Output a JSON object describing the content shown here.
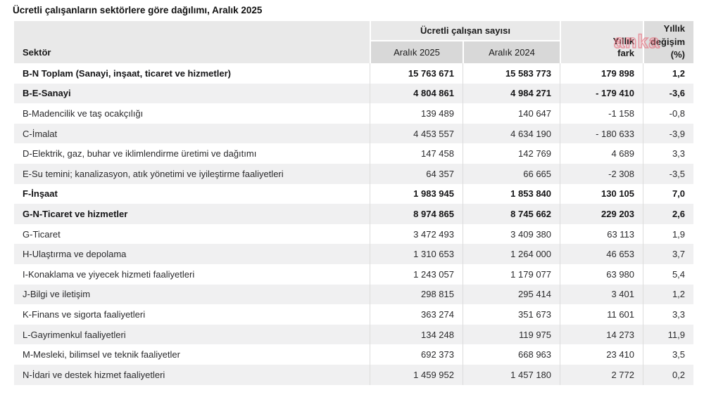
{
  "title": "Ücretli çalışanların sektörlere göre dağılımı, Aralık 2025",
  "watermark": "anka",
  "header": {
    "sector": "Sektör",
    "group": "Ücretli çalışan sayısı",
    "dec2025": "Aralık 2025",
    "dec2024": "Aralık 2024",
    "diff": "Yıllık\nfark",
    "pct": "Yıllık\ndeğişim\n(%)"
  },
  "colors": {
    "header_bg": "#e9e9e9",
    "subheader_bg": "#d8d8d8",
    "pct_header_bg": "#dcdcdc",
    "row_alt_bg": "#f0f0f1",
    "column_border": "#dcdcdc",
    "watermark_pink": "#e86e7e",
    "text": "#1d1d1f"
  },
  "chart_data": {
    "type": "table",
    "title": "Ücretli çalışanların sektörlere göre dağılımı, Aralık 2025",
    "column_groups": [
      {
        "label": "Ücretli çalışan sayısı",
        "columns": [
          "Aralık 2025",
          "Aralık 2024"
        ]
      }
    ],
    "columns": [
      "Sektör",
      "Aralık 2025",
      "Aralık 2024",
      "Yıllık fark",
      "Yıllık değişim (%)"
    ],
    "rows": [
      {
        "sector": "B-N Toplam (Sanayi, inşaat, ticaret ve hizmetler)",
        "dec2025": "15 763 671",
        "dec2024": "15 583 773",
        "diff": "179 898",
        "pct": "1,2",
        "bold": true
      },
      {
        "sector": "B-E-Sanayi",
        "dec2025": "4 804 861",
        "dec2024": "4 984 271",
        "diff": "- 179 410",
        "pct": "-3,6",
        "bold": true
      },
      {
        "sector": "B-Madencilik ve taş ocakçılığı",
        "dec2025": "139 489",
        "dec2024": "140 647",
        "diff": "-1 158",
        "pct": "-0,8",
        "bold": false
      },
      {
        "sector": "C-İmalat",
        "dec2025": "4 453 557",
        "dec2024": "4 634 190",
        "diff": "- 180 633",
        "pct": "-3,9",
        "bold": false
      },
      {
        "sector": "D-Elektrik, gaz, buhar ve iklimlendirme üretimi ve dağıtımı",
        "dec2025": "147 458",
        "dec2024": "142 769",
        "diff": "4 689",
        "pct": "3,3",
        "bold": false
      },
      {
        "sector": "E-Su temini; kanalizasyon, atık yönetimi ve iyileştirme faaliyetleri",
        "dec2025": "64 357",
        "dec2024": "66 665",
        "diff": "-2 308",
        "pct": "-3,5",
        "bold": false
      },
      {
        "sector": "F-İnşaat",
        "dec2025": "1 983 945",
        "dec2024": "1 853 840",
        "diff": "130 105",
        "pct": "7,0",
        "bold": true
      },
      {
        "sector": "G-N-Ticaret ve hizmetler",
        "dec2025": "8 974 865",
        "dec2024": "8 745 662",
        "diff": "229 203",
        "pct": "2,6",
        "bold": true
      },
      {
        "sector": "G-Ticaret",
        "dec2025": "3 472 493",
        "dec2024": "3 409 380",
        "diff": "63 113",
        "pct": "1,9",
        "bold": false
      },
      {
        "sector": "H-Ulaştırma ve depolama",
        "dec2025": "1 310 653",
        "dec2024": "1 264 000",
        "diff": "46 653",
        "pct": "3,7",
        "bold": false
      },
      {
        "sector": "I-Konaklama ve yiyecek hizmeti faaliyetleri",
        "dec2025": "1 243 057",
        "dec2024": "1 179 077",
        "diff": "63 980",
        "pct": "5,4",
        "bold": false
      },
      {
        "sector": "J-Bilgi ve iletişim",
        "dec2025": "298 815",
        "dec2024": "295 414",
        "diff": "3 401",
        "pct": "1,2",
        "bold": false
      },
      {
        "sector": "K-Finans ve sigorta faaliyetleri",
        "dec2025": "363 274",
        "dec2024": "351 673",
        "diff": "11 601",
        "pct": "3,3",
        "bold": false
      },
      {
        "sector": "L-Gayrimenkul faaliyetleri",
        "dec2025": "134 248",
        "dec2024": "119 975",
        "diff": "14 273",
        "pct": "11,9",
        "bold": false
      },
      {
        "sector": "M-Mesleki, bilimsel ve teknik faaliyetler",
        "dec2025": "692 373",
        "dec2024": "668 963",
        "diff": "23 410",
        "pct": "3,5",
        "bold": false
      },
      {
        "sector": "N-İdari ve destek hizmet faaliyetleri",
        "dec2025": "1 459 952",
        "dec2024": "1 457 180",
        "diff": "2 772",
        "pct": "0,2",
        "bold": false
      }
    ]
  }
}
